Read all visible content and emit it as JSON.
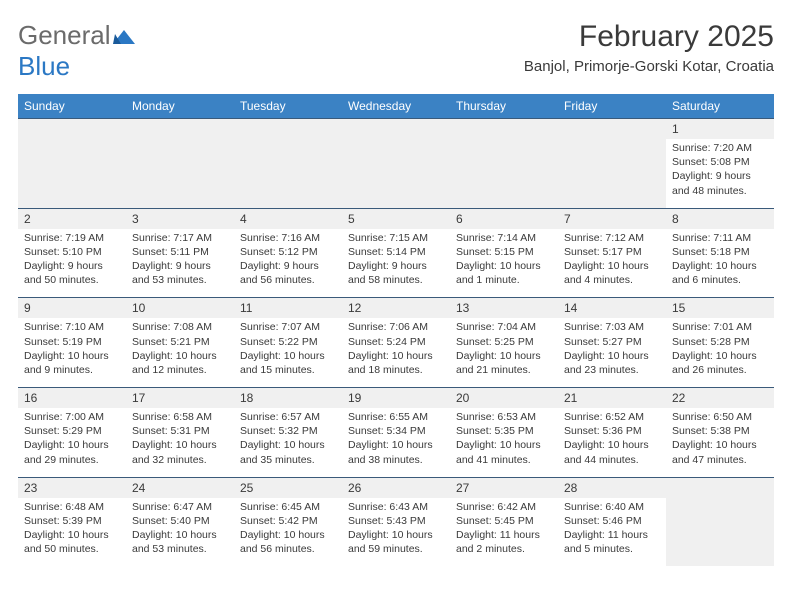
{
  "brand": {
    "general": "General",
    "blue": "Blue"
  },
  "title": "February 2025",
  "location": "Banjol, Primorje-Gorski Kotar, Croatia",
  "style": {
    "header_bg": "#3b82c4",
    "header_fg": "#ffffff",
    "cell_border": "#3a5a7a",
    "daynum_bg": "#f0f0f0",
    "text_color": "#3a3a3a",
    "logo_gray": "#6b6b6b",
    "logo_blue": "#2b78c4",
    "body_bg": "#ffffff",
    "title_fontsize": 30,
    "location_fontsize": 15,
    "dayheader_fontsize": 12,
    "dayinfo_fontsize": 10.5
  },
  "day_headers": [
    "Sunday",
    "Monday",
    "Tuesday",
    "Wednesday",
    "Thursday",
    "Friday",
    "Saturday"
  ],
  "weeks": [
    [
      {
        "blank": true
      },
      {
        "blank": true
      },
      {
        "blank": true
      },
      {
        "blank": true
      },
      {
        "blank": true
      },
      {
        "blank": true
      },
      {
        "n": "1",
        "sr": "7:20 AM",
        "ss": "5:08 PM",
        "dl": "9 hours and 48 minutes."
      }
    ],
    [
      {
        "n": "2",
        "sr": "7:19 AM",
        "ss": "5:10 PM",
        "dl": "9 hours and 50 minutes."
      },
      {
        "n": "3",
        "sr": "7:17 AM",
        "ss": "5:11 PM",
        "dl": "9 hours and 53 minutes."
      },
      {
        "n": "4",
        "sr": "7:16 AM",
        "ss": "5:12 PM",
        "dl": "9 hours and 56 minutes."
      },
      {
        "n": "5",
        "sr": "7:15 AM",
        "ss": "5:14 PM",
        "dl": "9 hours and 58 minutes."
      },
      {
        "n": "6",
        "sr": "7:14 AM",
        "ss": "5:15 PM",
        "dl": "10 hours and 1 minute."
      },
      {
        "n": "7",
        "sr": "7:12 AM",
        "ss": "5:17 PM",
        "dl": "10 hours and 4 minutes."
      },
      {
        "n": "8",
        "sr": "7:11 AM",
        "ss": "5:18 PM",
        "dl": "10 hours and 6 minutes."
      }
    ],
    [
      {
        "n": "9",
        "sr": "7:10 AM",
        "ss": "5:19 PM",
        "dl": "10 hours and 9 minutes."
      },
      {
        "n": "10",
        "sr": "7:08 AM",
        "ss": "5:21 PM",
        "dl": "10 hours and 12 minutes."
      },
      {
        "n": "11",
        "sr": "7:07 AM",
        "ss": "5:22 PM",
        "dl": "10 hours and 15 minutes."
      },
      {
        "n": "12",
        "sr": "7:06 AM",
        "ss": "5:24 PM",
        "dl": "10 hours and 18 minutes."
      },
      {
        "n": "13",
        "sr": "7:04 AM",
        "ss": "5:25 PM",
        "dl": "10 hours and 21 minutes."
      },
      {
        "n": "14",
        "sr": "7:03 AM",
        "ss": "5:27 PM",
        "dl": "10 hours and 23 minutes."
      },
      {
        "n": "15",
        "sr": "7:01 AM",
        "ss": "5:28 PM",
        "dl": "10 hours and 26 minutes."
      }
    ],
    [
      {
        "n": "16",
        "sr": "7:00 AM",
        "ss": "5:29 PM",
        "dl": "10 hours and 29 minutes."
      },
      {
        "n": "17",
        "sr": "6:58 AM",
        "ss": "5:31 PM",
        "dl": "10 hours and 32 minutes."
      },
      {
        "n": "18",
        "sr": "6:57 AM",
        "ss": "5:32 PM",
        "dl": "10 hours and 35 minutes."
      },
      {
        "n": "19",
        "sr": "6:55 AM",
        "ss": "5:34 PM",
        "dl": "10 hours and 38 minutes."
      },
      {
        "n": "20",
        "sr": "6:53 AM",
        "ss": "5:35 PM",
        "dl": "10 hours and 41 minutes."
      },
      {
        "n": "21",
        "sr": "6:52 AM",
        "ss": "5:36 PM",
        "dl": "10 hours and 44 minutes."
      },
      {
        "n": "22",
        "sr": "6:50 AM",
        "ss": "5:38 PM",
        "dl": "10 hours and 47 minutes."
      }
    ],
    [
      {
        "n": "23",
        "sr": "6:48 AM",
        "ss": "5:39 PM",
        "dl": "10 hours and 50 minutes."
      },
      {
        "n": "24",
        "sr": "6:47 AM",
        "ss": "5:40 PM",
        "dl": "10 hours and 53 minutes."
      },
      {
        "n": "25",
        "sr": "6:45 AM",
        "ss": "5:42 PM",
        "dl": "10 hours and 56 minutes."
      },
      {
        "n": "26",
        "sr": "6:43 AM",
        "ss": "5:43 PM",
        "dl": "10 hours and 59 minutes."
      },
      {
        "n": "27",
        "sr": "6:42 AM",
        "ss": "5:45 PM",
        "dl": "11 hours and 2 minutes."
      },
      {
        "n": "28",
        "sr": "6:40 AM",
        "ss": "5:46 PM",
        "dl": "11 hours and 5 minutes."
      },
      {
        "blank": true
      }
    ]
  ],
  "labels": {
    "sunrise": "Sunrise:",
    "sunset": "Sunset:",
    "daylight": "Daylight:"
  }
}
